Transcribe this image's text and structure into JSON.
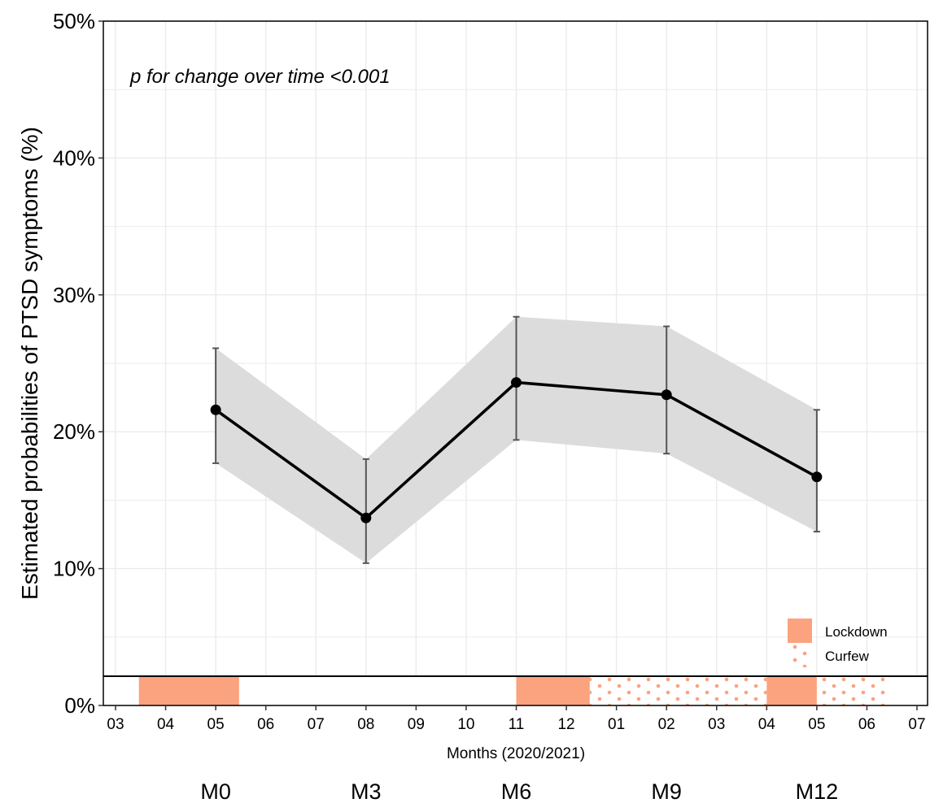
{
  "chart_data": {
    "type": "line",
    "title": "",
    "xlabel": "Months (2020/2021)",
    "ylabel": "Estimated probabilities of PTSD symptoms (%)",
    "ylim": [
      0,
      50
    ],
    "y_ticks": [
      "0%",
      "10%",
      "20%",
      "30%",
      "40%",
      "50%"
    ],
    "y_tick_values": [
      0,
      10,
      20,
      30,
      40,
      50
    ],
    "x_ticks": [
      "03",
      "04",
      "05",
      "06",
      "07",
      "08",
      "09",
      "10",
      "11",
      "12",
      "01",
      "02",
      "03",
      "04",
      "05",
      "06",
      "07"
    ],
    "x_range": [
      "2020-03",
      "2021-07"
    ],
    "grid": true,
    "annotation": "p for change over time <0.001",
    "points": [
      {
        "x": "2020-05",
        "y": 21.6,
        "ci_low": 17.7,
        "ci_high": 26.1
      },
      {
        "x": "2020-08",
        "y": 13.7,
        "ci_low": 10.4,
        "ci_high": 18.0
      },
      {
        "x": "2020-11",
        "y": 23.6,
        "ci_low": 19.4,
        "ci_high": 28.4
      },
      {
        "x": "2021-02",
        "y": 22.7,
        "ci_low": 18.4,
        "ci_high": 27.7
      },
      {
        "x": "2021-05",
        "y": 16.7,
        "ci_low": 12.7,
        "ci_high": 21.6
      }
    ],
    "phase_labels": [
      {
        "label": "M0",
        "x": "2020-05"
      },
      {
        "label": "M3",
        "x": "2020-08"
      },
      {
        "label": "M6",
        "x": "2020-11"
      },
      {
        "label": "M9",
        "x": "2021-02"
      },
      {
        "label": "M12",
        "x": "2021-05"
      }
    ],
    "periods": [
      {
        "type": "Lockdown",
        "start": "2020-03-15",
        "end": "2020-05-15"
      },
      {
        "type": "Lockdown",
        "start": "2020-11-01",
        "end": "2020-12-15"
      },
      {
        "type": "Curfew",
        "start": "2020-12-15",
        "end": "2021-04-01"
      },
      {
        "type": "Lockdown",
        "start": "2021-04-01",
        "end": "2021-05-01"
      },
      {
        "type": "Curfew",
        "start": "2021-05-01",
        "end": "2021-06-15"
      }
    ],
    "legend": {
      "position": "bottom-right",
      "items": [
        {
          "label": "Lockdown",
          "color": "#fba27f",
          "pattern": "solid"
        },
        {
          "label": "Curfew",
          "color": "#fba27f",
          "pattern": "dots"
        }
      ]
    },
    "colors": {
      "line": "#000000",
      "ribbon": "#dcdcdc",
      "error_bar": "#555555",
      "grid": "#ebebeb",
      "period": "#fba27f"
    }
  }
}
